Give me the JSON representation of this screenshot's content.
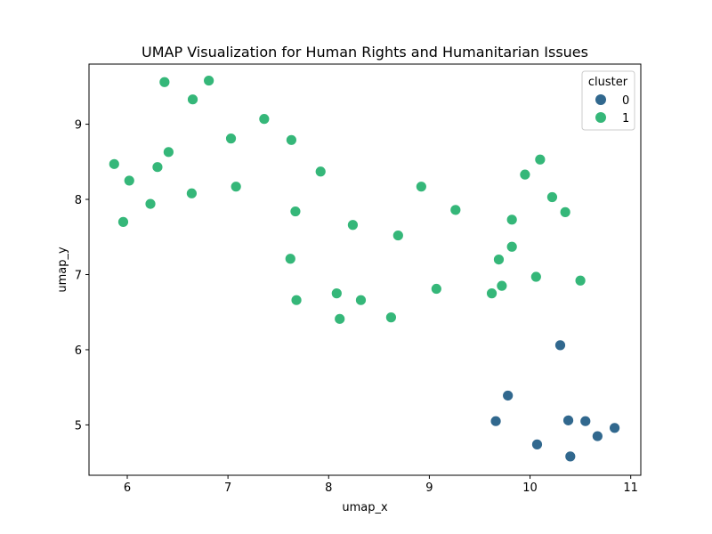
{
  "chart_data": {
    "type": "scatter",
    "title": "UMAP Visualization for Human Rights and Humanitarian Issues",
    "xlabel": "umap_x",
    "ylabel": "umap_y",
    "xlim": [
      5.62,
      11.1
    ],
    "ylim": [
      4.33,
      9.8
    ],
    "xticks": [
      6,
      7,
      8,
      9,
      10,
      11
    ],
    "yticks": [
      5,
      6,
      7,
      8,
      9
    ],
    "grid": false,
    "legend": {
      "title": "cluster",
      "placement": "top-right"
    },
    "series": [
      {
        "name": "0",
        "color": "#31688e",
        "points": [
          [
            10.3,
            6.06
          ],
          [
            9.78,
            5.39
          ],
          [
            9.66,
            5.05
          ],
          [
            10.38,
            5.06
          ],
          [
            10.55,
            5.05
          ],
          [
            10.84,
            4.96
          ],
          [
            10.67,
            4.85
          ],
          [
            10.07,
            4.74
          ],
          [
            10.4,
            4.58
          ]
        ]
      },
      {
        "name": "1",
        "color": "#35b779",
        "points": [
          [
            6.37,
            9.56
          ],
          [
            6.81,
            9.58
          ],
          [
            6.65,
            9.33
          ],
          [
            7.36,
            9.07
          ],
          [
            7.03,
            8.81
          ],
          [
            7.63,
            8.79
          ],
          [
            6.41,
            8.63
          ],
          [
            5.87,
            8.47
          ],
          [
            6.3,
            8.43
          ],
          [
            7.92,
            8.37
          ],
          [
            6.02,
            8.25
          ],
          [
            7.08,
            8.17
          ],
          [
            6.64,
            8.08
          ],
          [
            6.23,
            7.94
          ],
          [
            7.67,
            7.84
          ],
          [
            5.96,
            7.7
          ],
          [
            8.24,
            7.66
          ],
          [
            8.69,
            7.52
          ],
          [
            8.92,
            8.17
          ],
          [
            9.26,
            7.86
          ],
          [
            10.1,
            8.53
          ],
          [
            9.95,
            8.33
          ],
          [
            10.22,
            8.03
          ],
          [
            10.35,
            7.83
          ],
          [
            9.82,
            7.73
          ],
          [
            9.82,
            7.37
          ],
          [
            9.69,
            7.2
          ],
          [
            7.62,
            7.21
          ],
          [
            10.06,
            6.97
          ],
          [
            10.5,
            6.92
          ],
          [
            9.72,
            6.85
          ],
          [
            9.62,
            6.75
          ],
          [
            9.07,
            6.81
          ],
          [
            8.08,
            6.75
          ],
          [
            8.32,
            6.66
          ],
          [
            7.68,
            6.66
          ],
          [
            8.11,
            6.41
          ],
          [
            8.62,
            6.43
          ]
        ]
      }
    ]
  }
}
